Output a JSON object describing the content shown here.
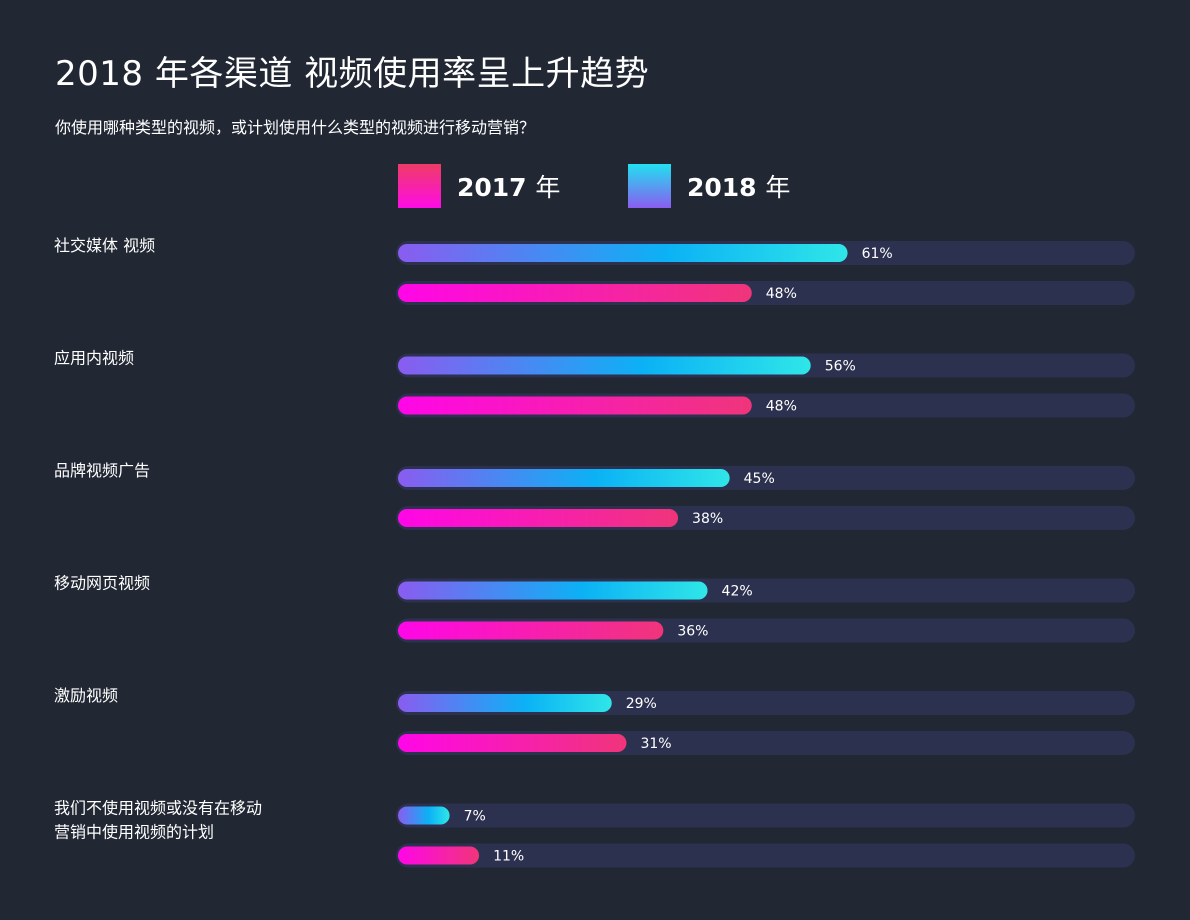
{
  "chart_data": {
    "type": "bar",
    "orientation": "horizontal",
    "title": "2018 年各渠道 视频使用率呈上升趋势",
    "subtitle": "你使用哪种类型的视频，或计划使用什么类型的视频进行移动营销？",
    "categories": [
      [
        "社交媒体 视频"
      ],
      [
        "应用内视频"
      ],
      [
        "品牌视频广告"
      ],
      [
        "移动网页视频"
      ],
      [
        "激励视频"
      ],
      [
        "我们不使用视频或没有在移动",
        "营销中使用视频的计划"
      ]
    ],
    "series": [
      {
        "name": "2018 年",
        "year": "2018",
        "unit": "年",
        "values": [
          61,
          56,
          45,
          42,
          29,
          7
        ],
        "colors": [
          "#8a5cf0",
          "#0bb2f5",
          "#2fe6e8"
        ]
      },
      {
        "name": "2017 年",
        "year": "2017",
        "unit": "年",
        "values": [
          48,
          48,
          38,
          36,
          31,
          11
        ],
        "colors": [
          "#ff06e8",
          "#f0357a"
        ]
      }
    ],
    "value_suffix": "%",
    "xlim": [
      0,
      100
    ],
    "track_color": "#2d3150",
    "legend": "top",
    "grid": false
  }
}
